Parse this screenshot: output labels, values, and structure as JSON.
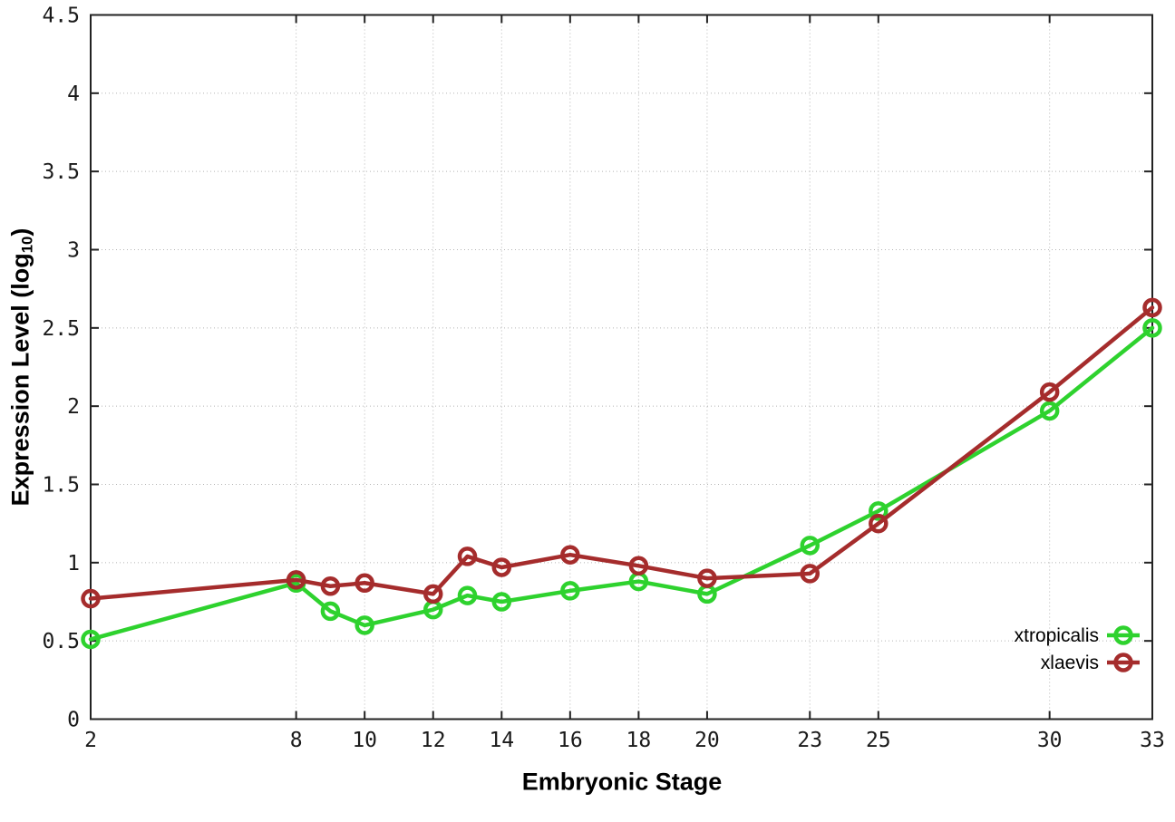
{
  "chart_data": {
    "type": "line",
    "title": "",
    "xlabel": "Embryonic Stage",
    "ylabel": "Expression Level (log10)",
    "ylabel_parts": {
      "pre": "Expression Level (log",
      "sub": "10",
      "post": ")"
    },
    "xlim": [
      2,
      33
    ],
    "ylim": [
      0,
      4.5
    ],
    "grid": true,
    "legend_position": "bottom-right-inside",
    "x": [
      2,
      8,
      9,
      10,
      12,
      13,
      14,
      16,
      18,
      20,
      23,
      25,
      30,
      33
    ],
    "xticks": [
      {
        "v": 2,
        "label": "2"
      },
      {
        "v": 8,
        "label": "8"
      },
      {
        "v": 10,
        "label": "10"
      },
      {
        "v": 12,
        "label": "12"
      },
      {
        "v": 14,
        "label": "14"
      },
      {
        "v": 16,
        "label": "16"
      },
      {
        "v": 18,
        "label": "18"
      },
      {
        "v": 20,
        "label": "20"
      },
      {
        "v": 23,
        "label": "23"
      },
      {
        "v": 25,
        "label": "25"
      },
      {
        "v": 30,
        "label": "30"
      },
      {
        "v": 33,
        "label": "33"
      }
    ],
    "yticks": [
      {
        "v": 0,
        "label": "0"
      },
      {
        "v": 0.5,
        "label": "0.5"
      },
      {
        "v": 1,
        "label": "1"
      },
      {
        "v": 1.5,
        "label": "1.5"
      },
      {
        "v": 2,
        "label": "2"
      },
      {
        "v": 2.5,
        "label": "2.5"
      },
      {
        "v": 3,
        "label": "3"
      },
      {
        "v": 3.5,
        "label": "3.5"
      },
      {
        "v": 4,
        "label": "4"
      },
      {
        "v": 4.5,
        "label": "4.5"
      }
    ],
    "series": [
      {
        "name": "xtropicalis",
        "color": "#2ed22e",
        "values": [
          0.51,
          0.87,
          0.69,
          0.6,
          0.7,
          0.79,
          0.75,
          0.82,
          0.88,
          0.8,
          1.11,
          1.33,
          1.97,
          2.5
        ]
      },
      {
        "name": "xlaevis",
        "color": "#a52c2c",
        "values": [
          0.77,
          0.89,
          0.85,
          0.87,
          0.8,
          1.04,
          0.97,
          1.05,
          0.98,
          0.9,
          0.93,
          1.25,
          2.09,
          2.63
        ]
      }
    ]
  },
  "colors": {
    "background": "#ffffff",
    "axis": "#222222",
    "grid": "#b5b5b5",
    "tick_label": "#1a1a1a"
  }
}
